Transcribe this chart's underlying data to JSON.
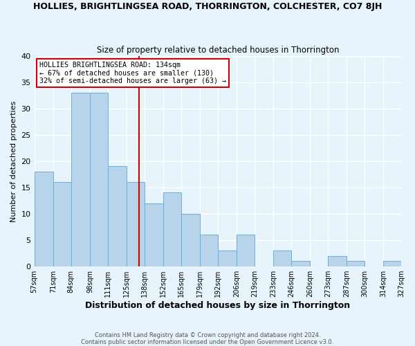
{
  "title": "HOLLIES, BRIGHTLINGSEA ROAD, THORRINGTON, COLCHESTER, CO7 8JH",
  "subtitle": "Size of property relative to detached houses in Thorrington",
  "xlabel": "Distribution of detached houses by size in Thorrington",
  "ylabel": "Number of detached properties",
  "footer_line1": "Contains HM Land Registry data © Crown copyright and database right 2024.",
  "footer_line2": "Contains public sector information licensed under the Open Government Licence v3.0.",
  "bin_edges": [
    57,
    71,
    84,
    98,
    111,
    125,
    138,
    152,
    165,
    179,
    192,
    206,
    219,
    233,
    246,
    260,
    273,
    287,
    300,
    314,
    327
  ],
  "bin_labels": [
    "57sqm",
    "71sqm",
    "84sqm",
    "98sqm",
    "111sqm",
    "125sqm",
    "138sqm",
    "152sqm",
    "165sqm",
    "179sqm",
    "192sqm",
    "206sqm",
    "219sqm",
    "233sqm",
    "246sqm",
    "260sqm",
    "273sqm",
    "287sqm",
    "300sqm",
    "314sqm",
    "327sqm"
  ],
  "counts": [
    18,
    16,
    33,
    33,
    19,
    16,
    12,
    14,
    10,
    6,
    3,
    6,
    0,
    3,
    1,
    0,
    2,
    1,
    0,
    1
  ],
  "bar_color": "#b8d4ea",
  "bar_edge_color": "#6aaed6",
  "background_color": "#e8f4fb",
  "grid_color": "#ffffff",
  "marker_value": 134,
  "marker_color": "#cc0000",
  "annotation_title": "HOLLIES BRIGHTLINGSEA ROAD: 134sqm",
  "annotation_line1": "← 67% of detached houses are smaller (130)",
  "annotation_line2": "32% of semi-detached houses are larger (63) →",
  "annotation_box_color": "#ffffff",
  "annotation_box_edge_color": "#cc0000",
  "ylim": [
    0,
    40
  ],
  "yticks": [
    0,
    5,
    10,
    15,
    20,
    25,
    30,
    35,
    40
  ]
}
